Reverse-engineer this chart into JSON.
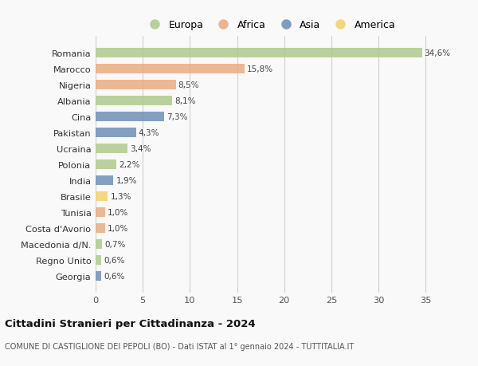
{
  "countries": [
    "Romania",
    "Marocco",
    "Nigeria",
    "Albania",
    "Cina",
    "Pakistan",
    "Ucraina",
    "Polonia",
    "India",
    "Brasile",
    "Tunisia",
    "Costa d'Avorio",
    "Macedonia d/N.",
    "Regno Unito",
    "Georgia"
  ],
  "values": [
    34.6,
    15.8,
    8.5,
    8.1,
    7.3,
    4.3,
    3.4,
    2.2,
    1.9,
    1.3,
    1.0,
    1.0,
    0.7,
    0.6,
    0.6
  ],
  "labels": [
    "34,6%",
    "15,8%",
    "8,5%",
    "8,1%",
    "7,3%",
    "4,3%",
    "3,4%",
    "2,2%",
    "1,9%",
    "1,3%",
    "1,0%",
    "1,0%",
    "0,7%",
    "0,6%",
    "0,6%"
  ],
  "continents": [
    "Europa",
    "Africa",
    "Africa",
    "Europa",
    "Asia",
    "Asia",
    "Europa",
    "Europa",
    "Asia",
    "America",
    "Africa",
    "Africa",
    "Europa",
    "Europa",
    "Asia"
  ],
  "colors": {
    "Europa": "#adc98a",
    "Africa": "#e8aa7e",
    "Asia": "#6b8db5",
    "America": "#f2d06b"
  },
  "xlim": [
    0,
    37
  ],
  "xticks": [
    0,
    5,
    10,
    15,
    20,
    25,
    30,
    35
  ],
  "legend_order": [
    "Europa",
    "Africa",
    "Asia",
    "America"
  ],
  "title": "Cittadini Stranieri per Cittadinanza - 2024",
  "subtitle": "COMUNE DI CASTIGLIONE DEI PEPOLI (BO) - Dati ISTAT al 1° gennaio 2024 - TUTTITALIA.IT",
  "background_color": "#f9f9f9",
  "grid_color": "#d0d0d0",
  "bar_height": 0.62
}
